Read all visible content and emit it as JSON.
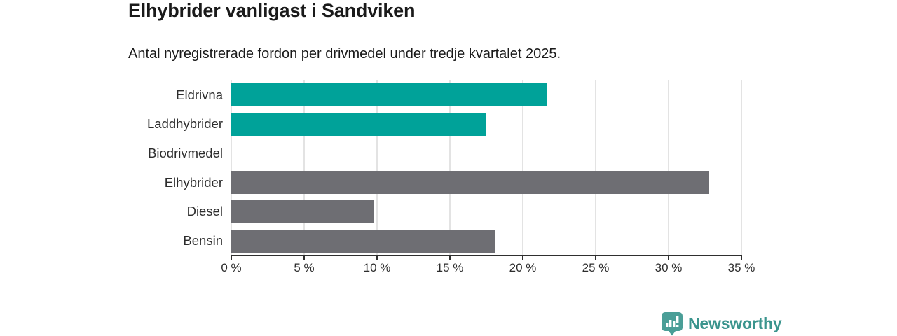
{
  "header": {
    "title": "Elhybrider vanligast i Sandviken",
    "subtitle": "Antal nyregistrerade fordon per drivmedel under tredje kvartalet 2025."
  },
  "chart_data": {
    "type": "bar",
    "orientation": "horizontal",
    "title": "Elhybrider vanligast i Sandviken",
    "subtitle": "Antal nyregistrerade fordon per drivmedel under tredje kvartalet 2025.",
    "categories": [
      "Eldrivna",
      "Laddhybrider",
      "Biodrivmedel",
      "Elhybrider",
      "Diesel",
      "Bensin"
    ],
    "values": [
      21.7,
      17.5,
      0,
      32.8,
      9.8,
      18.1
    ],
    "unit": "%",
    "xlim": [
      0,
      35
    ],
    "xticks": [
      0,
      5,
      10,
      15,
      20,
      25,
      30,
      35
    ],
    "xtick_labels": [
      "0 %",
      "5 %",
      "10 %",
      "15 %",
      "20 %",
      "25 %",
      "30 %",
      "35 %"
    ],
    "bar_colors": [
      "#00a299",
      "#00a299",
      "#00a299",
      "#6e6e73",
      "#6e6e73",
      "#6e6e73"
    ],
    "grid": true,
    "legend": "none"
  },
  "colors": {
    "teal_bar": "#00a299",
    "gray_bar": "#6e6e73",
    "gridline": "#e3e3e3",
    "axis": "#2f2f2f",
    "text": "#1a1a1a",
    "brand_icon": "#4a9e97",
    "brand_text": "#3a948d"
  },
  "footer": {
    "brand": "Newsworthy"
  }
}
